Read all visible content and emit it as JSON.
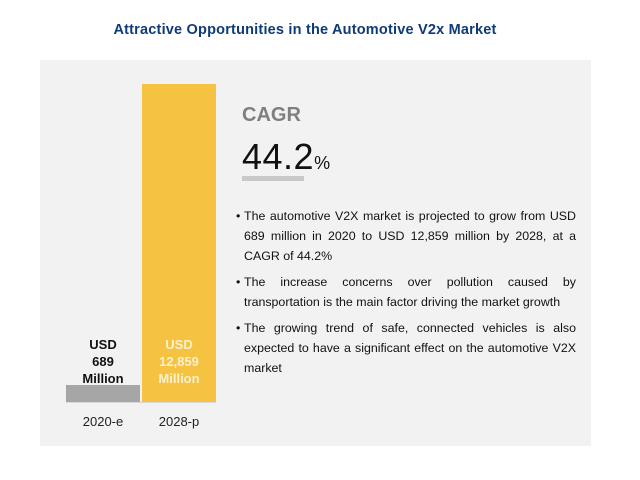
{
  "title": "Attractive Opportunities in the Automotive V2x Market",
  "cagr": {
    "label": "CAGR",
    "value": "44.2",
    "unit": "%"
  },
  "bullets": [
    "The automotive V2X market is projected to grow from USD 689 million in 2020 to USD 12,859 million by 2028, at a CAGR of 44.2%",
    "The increase concerns over pollution caused by transportation is the main factor driving the market growth",
    "The growing trend of safe, connected vehicles is also expected to have a significant effect on the automotive V2X market"
  ],
  "chart_data": {
    "type": "bar",
    "categories": [
      "2020-e",
      "2028-p"
    ],
    "values": [
      689,
      12859
    ],
    "value_labels": [
      [
        "USD",
        "689",
        "Million"
      ],
      [
        "USD",
        "12,859",
        "Million"
      ]
    ],
    "unit": "USD Million",
    "title": "",
    "xlabel": "",
    "ylabel": "",
    "ylim": [
      0,
      12859
    ],
    "colors": [
      "#a6a6a6",
      "#f5c242"
    ],
    "label_colors": [
      "#111111",
      "#fdf1cf"
    ],
    "grid": false,
    "legend": "none"
  }
}
